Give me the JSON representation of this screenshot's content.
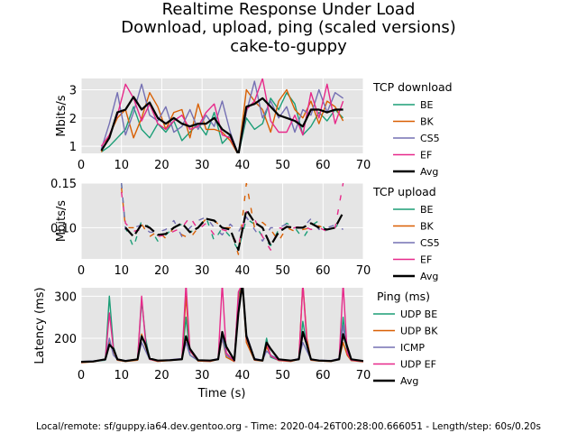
{
  "figure": {
    "title_lines": [
      "Realtime Response Under Load",
      "Download, upload, ping (scaled versions)",
      "cake-to-guppy"
    ],
    "footer": "Local/remote: sf/guppy.ia64.dev.gentoo.org - Time: 2020-04-26T00:28:00.666051 - Length/step: 60s/0.20s",
    "xlabel": "Time (s)",
    "colors": {
      "BE": "#1b9e77",
      "BK": "#d95f02",
      "CS5": "#7570b3",
      "EF": "#e7298a",
      "Avg": "#000000",
      "panel_bg": "#e5e5e5",
      "grid": "#ffffff"
    }
  },
  "chart_data": [
    {
      "type": "line",
      "ylabel": "Mbits/s",
      "legend_title": "TCP download",
      "legend_placement": "right",
      "grid": true,
      "xlim": [
        0,
        70
      ],
      "ylim": [
        0.75,
        3.4
      ],
      "xticks": [
        0,
        10,
        20,
        30,
        40,
        50,
        60,
        70
      ],
      "yticks": [
        1,
        2,
        3
      ],
      "x": [
        5,
        7,
        9,
        11,
        13,
        15,
        17,
        19,
        21,
        23,
        25,
        27,
        29,
        31,
        33,
        35,
        37,
        39,
        41,
        43,
        45,
        47,
        49,
        51,
        53,
        55,
        57,
        59,
        61,
        63,
        65
      ],
      "series": [
        {
          "name": "BE",
          "values": [
            0.8,
            1.0,
            1.3,
            1.6,
            2.4,
            1.6,
            1.3,
            1.8,
            1.5,
            1.9,
            1.2,
            1.5,
            1.8,
            1.4,
            2.2,
            1.1,
            1.4,
            0.7,
            2.0,
            1.6,
            1.8,
            2.7,
            2.3,
            2.9,
            2.5,
            1.4,
            1.7,
            2.2,
            1.9,
            2.3,
            2.0
          ]
        },
        {
          "name": "BK",
          "values": [
            0.8,
            1.4,
            2.0,
            2.3,
            1.3,
            2.0,
            2.9,
            2.4,
            1.6,
            2.2,
            2.3,
            1.3,
            2.5,
            1.6,
            1.6,
            1.5,
            1.2,
            0.7,
            3.0,
            2.6,
            2.3,
            1.5,
            2.6,
            3.0,
            2.3,
            2.0,
            2.6,
            1.8,
            2.6,
            2.4,
            1.9
          ]
        },
        {
          "name": "CS5",
          "values": [
            0.9,
            1.8,
            2.9,
            1.4,
            2.2,
            3.2,
            2.1,
            1.9,
            2.4,
            1.5,
            1.7,
            2.3,
            1.6,
            2.1,
            1.7,
            2.6,
            1.5,
            0.7,
            2.2,
            3.3,
            2.0,
            2.6,
            2.0,
            2.4,
            1.5,
            2.3,
            2.1,
            3.0,
            2.2,
            2.9,
            2.7
          ]
        },
        {
          "name": "EF",
          "values": [
            1.0,
            1.4,
            2.1,
            3.2,
            2.7,
            1.9,
            2.5,
            1.8,
            1.6,
            1.9,
            2.1,
            1.6,
            1.7,
            2.2,
            2.5,
            1.4,
            1.3,
            0.7,
            2.3,
            2.6,
            3.4,
            1.9,
            1.5,
            1.5,
            2.1,
            1.4,
            2.9,
            2.0,
            3.2,
            1.8,
            2.6
          ]
        },
        {
          "name": "Avg",
          "values": [
            0.85,
            1.3,
            2.2,
            2.3,
            2.75,
            2.3,
            2.55,
            2.0,
            1.8,
            2.0,
            1.8,
            1.7,
            1.8,
            1.8,
            2.0,
            1.6,
            1.4,
            0.7,
            2.4,
            2.5,
            2.7,
            2.4,
            2.1,
            2.0,
            1.9,
            1.7,
            2.3,
            2.3,
            2.2,
            2.3,
            2.3
          ]
        }
      ]
    },
    {
      "type": "line",
      "ylabel": "Mbits/s",
      "legend_title": "TCP upload",
      "legend_placement": "right",
      "grid": true,
      "xlim": [
        0,
        70
      ],
      "ylim": [
        0.065,
        0.15
      ],
      "xticks": [
        0,
        10,
        20,
        30,
        40,
        50,
        60,
        70
      ],
      "yticks": [
        0.1,
        0.15
      ],
      "ytick_labels": [
        "0.10",
        "0.15"
      ],
      "x": [
        10,
        11,
        13,
        15,
        17,
        19,
        21,
        23,
        25,
        27,
        29,
        31,
        33,
        35,
        37,
        39,
        41,
        43,
        45,
        47,
        49,
        51,
        53,
        55,
        57,
        59,
        61,
        63,
        65
      ],
      "series": [
        {
          "name": "BE",
          "values": [
            0.15,
            0.1,
            0.078,
            0.108,
            0.1,
            0.085,
            0.092,
            0.1,
            0.104,
            0.095,
            0.1,
            0.112,
            0.085,
            0.1,
            0.09,
            0.075,
            0.11,
            0.104,
            0.09,
            0.08,
            0.098,
            0.105,
            0.1,
            0.088,
            0.102,
            0.108,
            0.095,
            0.1,
            0.11
          ]
        },
        {
          "name": "BK",
          "values": [
            0.145,
            0.1,
            0.1,
            0.104,
            0.09,
            0.096,
            0.088,
            0.1,
            0.092,
            0.088,
            0.1,
            0.11,
            0.108,
            0.1,
            0.1,
            0.07,
            0.15,
            0.1,
            0.106,
            0.098,
            0.085,
            0.1,
            0.096,
            0.098,
            0.1,
            0.102,
            0.098,
            0.1,
            0.1
          ]
        },
        {
          "name": "CS5",
          "values": [
            0.15,
            0.098,
            0.1,
            0.103,
            0.095,
            0.095,
            0.098,
            0.108,
            0.09,
            0.1,
            0.108,
            0.112,
            0.1,
            0.092,
            0.104,
            0.095,
            0.112,
            0.098,
            0.085,
            0.1,
            0.1,
            0.104,
            0.1,
            0.1,
            0.11,
            0.098,
            0.1,
            0.103,
            0.098
          ]
        },
        {
          "name": "EF",
          "values": [
            0.14,
            0.105,
            0.096,
            0.098,
            0.1,
            0.09,
            0.092,
            0.096,
            0.1,
            0.112,
            0.098,
            0.105,
            0.092,
            0.098,
            0.095,
            0.08,
            0.118,
            0.11,
            0.09,
            0.075,
            0.1,
            0.098,
            0.1,
            0.102,
            0.098,
            0.1,
            0.096,
            0.1,
            0.15
          ]
        },
        {
          "name": "Avg",
          "values": [
            null,
            0.1,
            0.09,
            0.104,
            0.1,
            0.092,
            0.093,
            0.1,
            0.105,
            0.095,
            0.1,
            0.11,
            0.108,
            0.1,
            0.098,
            0.075,
            0.12,
            0.106,
            0.1,
            0.08,
            0.095,
            0.101,
            0.1,
            0.1,
            0.105,
            0.1,
            0.098,
            0.1,
            0.117
          ]
        }
      ]
    },
    {
      "type": "line",
      "ylabel": "Latency (ms)",
      "legend_title": "Ping (ms)",
      "legend_placement": "right",
      "grid": true,
      "xlim": [
        0,
        70
      ],
      "ylim": [
        140,
        320
      ],
      "xticks": [
        0,
        10,
        20,
        30,
        40,
        50,
        60,
        70
      ],
      "yticks": [
        200,
        300
      ],
      "x": [
        0,
        3,
        6,
        7,
        8,
        9,
        11,
        14,
        15,
        16,
        17,
        19,
        22,
        25,
        26,
        27,
        29,
        32,
        34,
        35,
        36,
        38,
        39,
        40,
        41,
        43,
        45,
        46,
        47,
        49,
        52,
        54,
        55,
        56,
        57,
        59,
        62,
        64,
        65,
        66,
        67,
        70
      ],
      "series": [
        {
          "name": "UDP BE",
          "values": [
            143,
            145,
            148,
            300,
            180,
            150,
            146,
            150,
            290,
            200,
            150,
            146,
            148,
            150,
            250,
            160,
            147,
            146,
            150,
            210,
            160,
            146,
            300,
            330,
            200,
            150,
            147,
            200,
            155,
            148,
            146,
            150,
            240,
            180,
            150,
            147,
            146,
            150,
            250,
            160,
            148,
            145
          ]
        },
        {
          "name": "UDP BK",
          "values": [
            142,
            144,
            150,
            190,
            170,
            148,
            145,
            148,
            210,
            180,
            150,
            145,
            147,
            150,
            300,
            170,
            146,
            145,
            150,
            200,
            155,
            145,
            290,
            330,
            190,
            148,
            146,
            180,
            160,
            147,
            145,
            150,
            330,
            200,
            148,
            146,
            145,
            150,
            190,
            160,
            147,
            144
          ]
        },
        {
          "name": "ICMP",
          "values": [
            145,
            146,
            150,
            200,
            160,
            150,
            147,
            150,
            190,
            170,
            150,
            147,
            149,
            152,
            190,
            160,
            148,
            147,
            152,
            200,
            160,
            148,
            280,
            330,
            210,
            152,
            148,
            170,
            160,
            150,
            147,
            152,
            190,
            170,
            150,
            148,
            147,
            152,
            230,
            170,
            150,
            146
          ]
        },
        {
          "name": "UDP EF",
          "values": [
            143,
            145,
            149,
            260,
            175,
            149,
            146,
            150,
            300,
            190,
            150,
            146,
            148,
            151,
            330,
            170,
            147,
            146,
            151,
            330,
            165,
            146,
            310,
            330,
            200,
            149,
            147,
            190,
            158,
            148,
            146,
            151,
            330,
            190,
            149,
            147,
            146,
            151,
            330,
            165,
            148,
            145
          ]
        },
        {
          "name": "Avg",
          "values": [
            144,
            145,
            150,
            185,
            175,
            150,
            146,
            150,
            205,
            185,
            152,
            147,
            148,
            150,
            205,
            175,
            148,
            147,
            150,
            215,
            180,
            148,
            260,
            330,
            205,
            150,
            147,
            190,
            175,
            150,
            147,
            150,
            215,
            185,
            150,
            147,
            146,
            150,
            210,
            180,
            150,
            146
          ]
        }
      ]
    }
  ]
}
